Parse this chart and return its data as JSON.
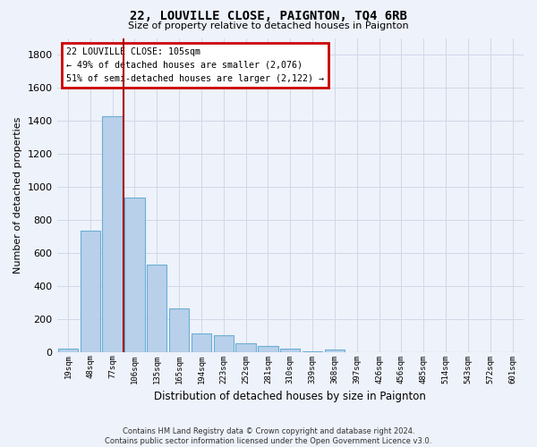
{
  "title": "22, LOUVILLE CLOSE, PAIGNTON, TQ4 6RB",
  "subtitle": "Size of property relative to detached houses in Paignton",
  "xlabel": "Distribution of detached houses by size in Paignton",
  "ylabel": "Number of detached properties",
  "footer_line1": "Contains HM Land Registry data © Crown copyright and database right 2024.",
  "footer_line2": "Contains public sector information licensed under the Open Government Licence v3.0.",
  "bar_labels": [
    "19sqm",
    "48sqm",
    "77sqm",
    "106sqm",
    "135sqm",
    "165sqm",
    "194sqm",
    "223sqm",
    "252sqm",
    "281sqm",
    "310sqm",
    "339sqm",
    "368sqm",
    "397sqm",
    "426sqm",
    "456sqm",
    "485sqm",
    "514sqm",
    "543sqm",
    "572sqm",
    "601sqm"
  ],
  "bar_values": [
    20,
    735,
    1425,
    935,
    530,
    265,
    110,
    100,
    50,
    35,
    20,
    5,
    15,
    0,
    0,
    0,
    0,
    0,
    0,
    0,
    0
  ],
  "bar_color": "#b8d0ea",
  "bar_edge_color": "#6aaed6",
  "grid_color": "#d0d8e8",
  "background_color": "#eef2fa",
  "annotation_title": "22 LOUVILLE CLOSE: 105sqm",
  "annotation_line1": "← 49% of detached houses are smaller (2,076)",
  "annotation_line2": "51% of semi-detached houses are larger (2,122) →",
  "annotation_box_color": "#ffffff",
  "annotation_box_edge": "#cc0000",
  "vline_color": "#aa0000",
  "ylim": [
    0,
    1900
  ],
  "yticks": [
    0,
    200,
    400,
    600,
    800,
    1000,
    1200,
    1400,
    1600,
    1800
  ]
}
